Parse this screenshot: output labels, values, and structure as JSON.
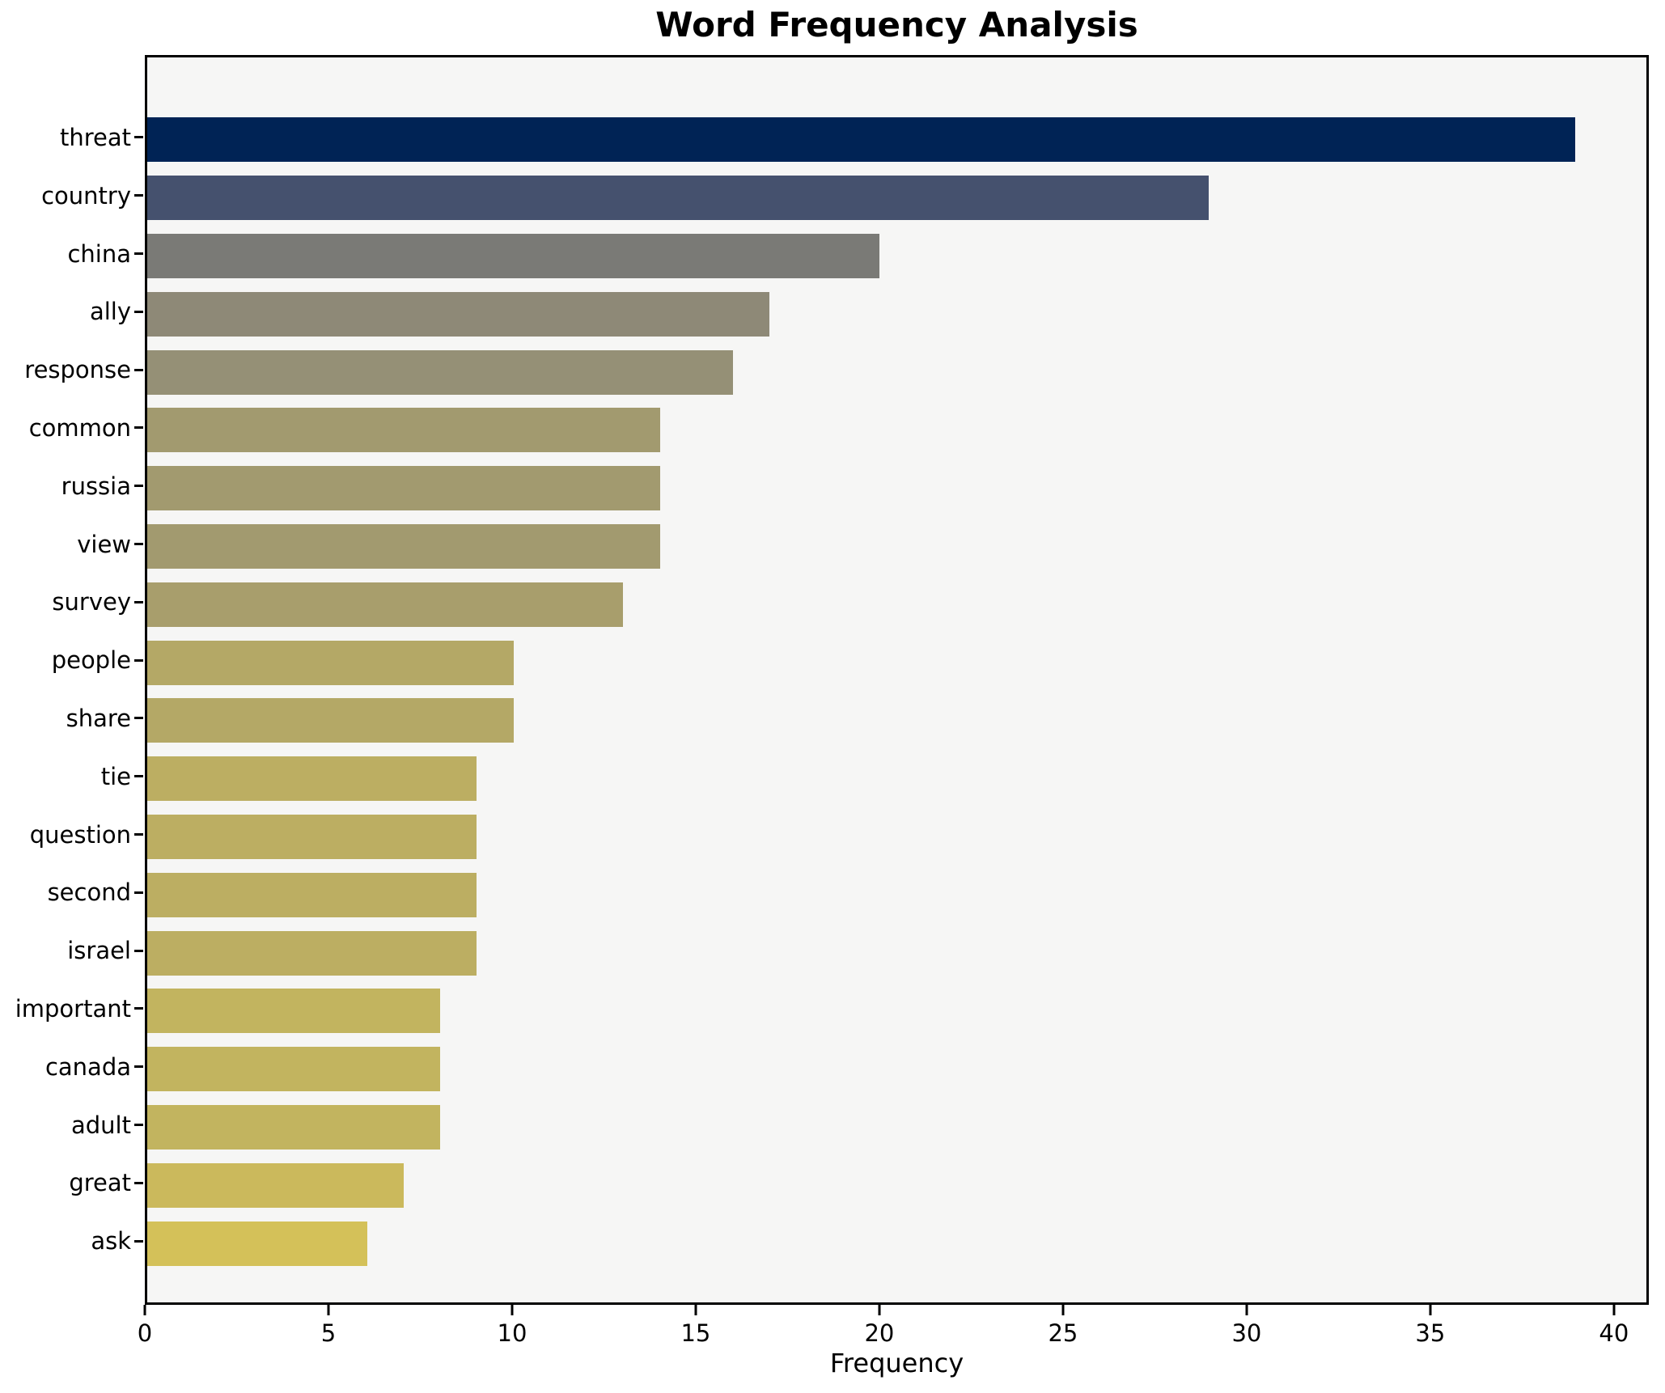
{
  "title": "Word Frequency Analysis",
  "chart_data": {
    "type": "bar",
    "orientation": "horizontal",
    "title": "Word Frequency Analysis",
    "xlabel": "Frequency",
    "ylabel": "",
    "categories": [
      "threat",
      "country",
      "china",
      "ally",
      "response",
      "common",
      "russia",
      "view",
      "survey",
      "people",
      "share",
      "tie",
      "question",
      "second",
      "israel",
      "important",
      "canada",
      "adult",
      "great",
      "ask"
    ],
    "values": [
      39,
      29,
      20,
      17,
      16,
      14,
      14,
      14,
      13,
      10,
      10,
      9,
      9,
      9,
      9,
      8,
      8,
      8,
      7,
      6
    ],
    "bar_colors": [
      "#002355",
      "#45516e",
      "#7a7a76",
      "#8e8977",
      "#959076",
      "#a29a6f",
      "#a29a6f",
      "#a29a6f",
      "#a89e6c",
      "#b4a866",
      "#b4a866",
      "#bcae62",
      "#bcae62",
      "#bcae62",
      "#bcae62",
      "#c2b45f",
      "#c2b45f",
      "#c2b45f",
      "#cbb95c",
      "#d4c159"
    ],
    "x_ticks": [
      0,
      5,
      10,
      15,
      20,
      25,
      30,
      35,
      40
    ],
    "xlim": [
      0,
      40.95
    ],
    "grid": false,
    "legend": false,
    "plot_background": "#f6f6f5",
    "figure_background": "#ffffff",
    "spine_color": "#000000"
  }
}
